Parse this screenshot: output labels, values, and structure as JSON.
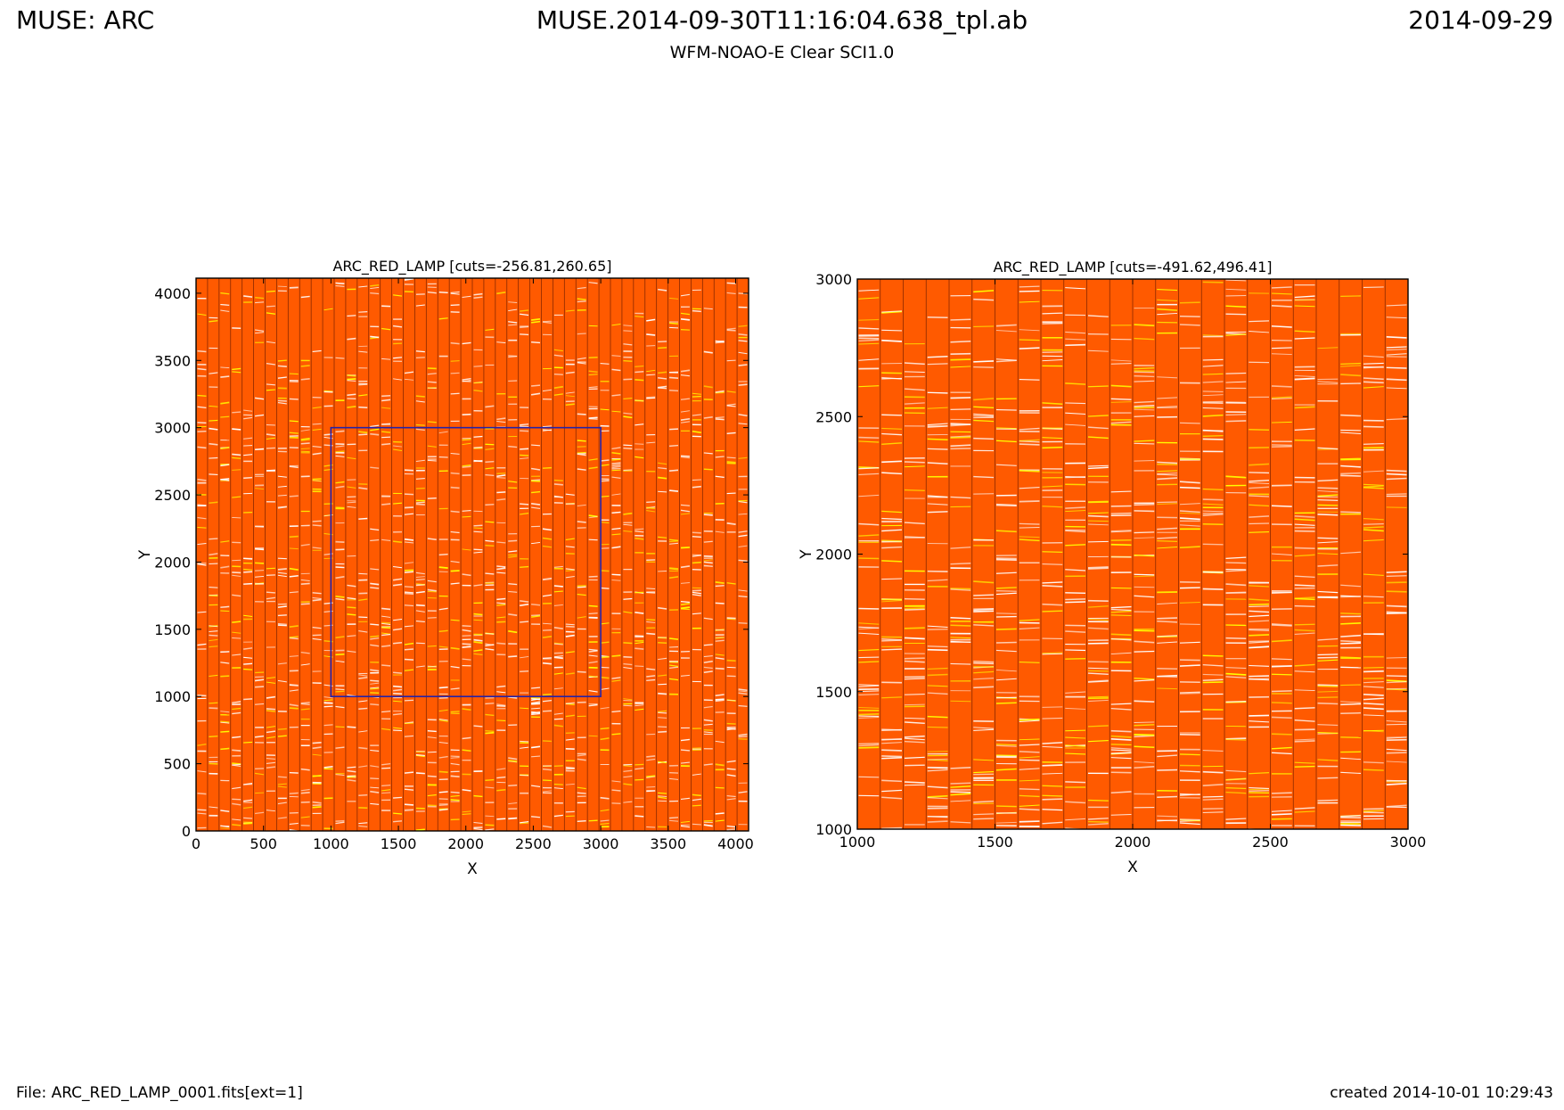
{
  "header": {
    "left": "MUSE: ARC",
    "center": "MUSE.2014-09-30T11:16:04.638_tpl.ab",
    "right": "2014-09-29",
    "subtitle": "WFM-NOAO-E Clear SCI1.0"
  },
  "footer": {
    "file": "File: ARC_RED_LAMP_0001.fits[ext=1]",
    "created": "created 2014-10-01 10:29:43"
  },
  "colors": {
    "background": "#ff5a00",
    "line_bright": "#ffffff",
    "line_yellow": "#ffff00",
    "edge_dark": "#2a0000",
    "zoom_box": "#2222aa"
  },
  "chart_data": [
    {
      "type": "heatmap",
      "title": "ARC_RED_LAMP [cuts=-256.81,260.65]",
      "xlabel": "X",
      "ylabel": "Y",
      "xlim": [
        0,
        4096
      ],
      "ylim": [
        0,
        4112
      ],
      "xticks": [
        0,
        500,
        1000,
        1500,
        2000,
        2500,
        3000,
        3500,
        4000
      ],
      "yticks": [
        0,
        500,
        1000,
        1500,
        2000,
        2500,
        3000,
        3500,
        4000
      ],
      "cuts": [
        -256.81,
        260.65
      ],
      "zoom_box": {
        "x": [
          1000,
          3000
        ],
        "y": [
          1000,
          3000
        ]
      }
    },
    {
      "type": "heatmap",
      "title": "ARC_RED_LAMP [cuts=-491.62,496.41]",
      "xlabel": "X",
      "ylabel": "Y",
      "xlim": [
        1000,
        3000
      ],
      "ylim": [
        1000,
        3000
      ],
      "xticks": [
        1000,
        1500,
        2000,
        2500,
        3000
      ],
      "yticks": [
        1000,
        1500,
        2000,
        2500,
        3000
      ],
      "cuts": [
        -491.62,
        496.41
      ]
    }
  ]
}
